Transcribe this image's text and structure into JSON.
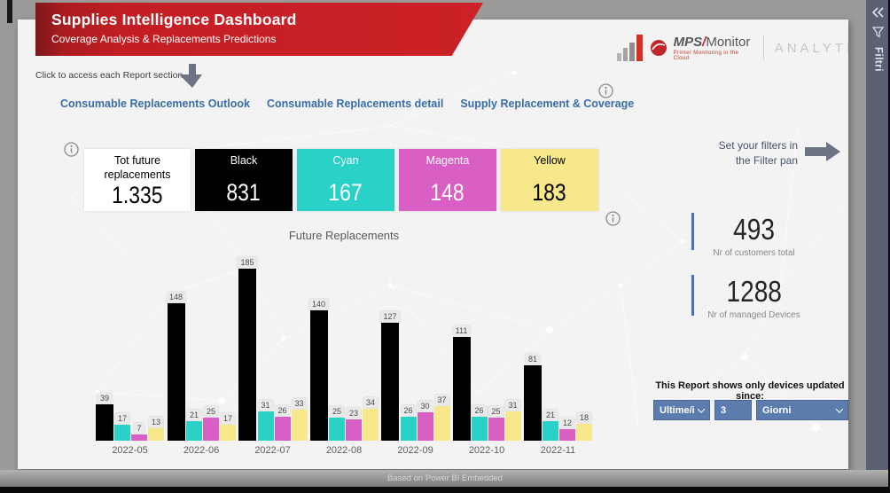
{
  "banner": {
    "title": "Supplies Intelligence Dashboard",
    "subtitle": "Coverage Analysis & Replacements Predictions"
  },
  "logo": {
    "prefix": "MPS",
    "slash": "/",
    "rest": "Monitor",
    "tagline": "Printer Monitoring in the Cloud",
    "analytics": "ANALYTICS"
  },
  "nav": {
    "hint": "Click to access each Report section",
    "links": [
      {
        "label": "Consumable Replacements Outlook"
      },
      {
        "label": "Consumable Replacements detail"
      },
      {
        "label": "Supply Replacement & Coverage"
      }
    ]
  },
  "kpi": {
    "cards": [
      {
        "label": "Tot future replacements",
        "value": "1.335",
        "bg": "#ffffff",
        "fg": "#000000"
      },
      {
        "label": "Black",
        "value": "831",
        "bg": "#000000",
        "fg": "#ffffff"
      },
      {
        "label": "Cyan",
        "value": "167",
        "bg": "#29d1c7",
        "fg": "#ffffff"
      },
      {
        "label": "Magenta",
        "value": "148",
        "bg": "#d95fc5",
        "fg": "#ffffff"
      },
      {
        "label": "Yellow",
        "value": "183",
        "bg": "#f7e98b",
        "fg": "#000000"
      }
    ]
  },
  "filters_hint": {
    "line1": "Set your filters in",
    "line2": "the Filter pan"
  },
  "stats": [
    {
      "value": "493",
      "label": "Nr of customers total"
    },
    {
      "value": "1288",
      "label": "Nr of managed Devices"
    }
  ],
  "chart_data": {
    "type": "bar",
    "title": "Future Replacements",
    "categories": [
      "2022-05",
      "2022-06",
      "2022-07",
      "2022-08",
      "2022-09",
      "2022-10",
      "2022-11"
    ],
    "series": [
      {
        "name": "Black",
        "color": "#000000",
        "values": [
          39,
          148,
          185,
          140,
          127,
          111,
          81
        ]
      },
      {
        "name": "Cyan",
        "color": "#29d1c7",
        "values": [
          17,
          21,
          31,
          25,
          26,
          26,
          21
        ]
      },
      {
        "name": "Magenta",
        "color": "#d95fc5",
        "values": [
          7,
          25,
          26,
          23,
          30,
          25,
          12
        ]
      },
      {
        "name": "Yellow",
        "color": "#f7e98b",
        "values": [
          13,
          17,
          33,
          34,
          37,
          31,
          18
        ]
      }
    ],
    "xlabel": "",
    "ylabel": "",
    "ylim": [
      0,
      200
    ],
    "grid": false,
    "legend": "none",
    "data_labels": true
  },
  "filter_bar": {
    "title": "This Report shows only devices updated since:",
    "controls": [
      {
        "value": "Ultime/i",
        "type": "dropdown"
      },
      {
        "value": "3",
        "type": "input"
      },
      {
        "value": "Giorni",
        "type": "dropdown"
      }
    ]
  },
  "sidepane": {
    "label": "Filtri"
  },
  "statusbar": {
    "text": "Based on Power BI Embedded"
  },
  "colors": {
    "banner_red": "#c41e24",
    "link_blue": "#3a6da6",
    "control_blue": "#5b7cad",
    "stat_line_blue": "#4a6fb5",
    "sidepane_slate": "#596173"
  }
}
